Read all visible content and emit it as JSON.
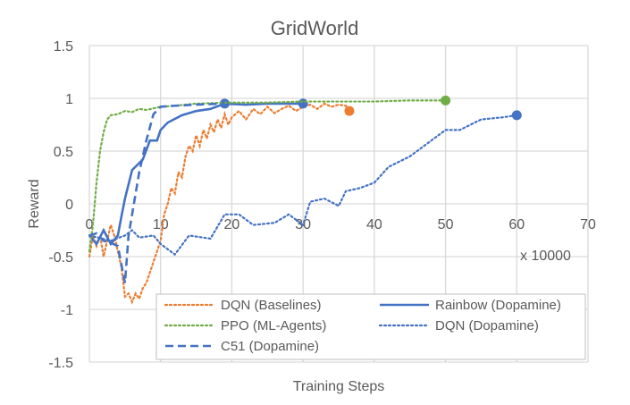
{
  "chart_data": {
    "type": "line",
    "title": "GridWorld",
    "xlabel": "Training Steps",
    "ylabel": "Reward",
    "x_unit_note": "x 10000",
    "xlim": [
      0,
      70
    ],
    "ylim": [
      -1.5,
      1.5
    ],
    "x_ticks": [
      0,
      10,
      20,
      30,
      40,
      50,
      60,
      70
    ],
    "y_ticks": [
      -1.5,
      -1,
      -0.5,
      0,
      0.5,
      1,
      1.5
    ],
    "y_tick_labels": [
      "-1.5",
      "-1",
      "-0.5",
      "0",
      "0.5",
      "1",
      "1.5"
    ],
    "grid": true,
    "legend_position": "bottom-right",
    "series": [
      {
        "name": "DQN (Baselines)",
        "color": "#ED7D31",
        "style": "dotted",
        "end_marker": true,
        "x": [
          0,
          0.5,
          1,
          1.5,
          2,
          2.5,
          3,
          3.5,
          4,
          4.5,
          5,
          5.5,
          6,
          6.5,
          7,
          7.5,
          8,
          8.5,
          9,
          9.5,
          10,
          10.5,
          11,
          11.5,
          12,
          12.5,
          13,
          13.5,
          14,
          14.5,
          15,
          15.5,
          16,
          16.5,
          17,
          17.5,
          18,
          18.5,
          19,
          19.5,
          20,
          21,
          22,
          23,
          24,
          25,
          26,
          27,
          28,
          29,
          30,
          31,
          32,
          33,
          34,
          35,
          36,
          36.5
        ],
        "y": [
          -0.5,
          -0.3,
          -0.4,
          -0.3,
          -0.5,
          -0.35,
          -0.2,
          -0.3,
          -0.45,
          -0.6,
          -0.88,
          -0.85,
          -0.93,
          -0.85,
          -0.9,
          -0.8,
          -0.75,
          -0.65,
          -0.55,
          -0.45,
          -0.35,
          -0.1,
          0.0,
          0.15,
          0.1,
          0.3,
          0.25,
          0.45,
          0.55,
          0.5,
          0.65,
          0.55,
          0.7,
          0.62,
          0.75,
          0.68,
          0.8,
          0.72,
          0.85,
          0.75,
          0.82,
          0.88,
          0.8,
          0.9,
          0.85,
          0.92,
          0.86,
          0.9,
          0.93,
          0.88,
          0.92,
          0.94,
          0.9,
          0.95,
          0.92,
          0.94,
          0.93,
          0.88
        ]
      },
      {
        "name": "Rainbow (Dopamine)",
        "color": "#4472C4",
        "style": "solid",
        "markers_at": [
          19,
          30
        ],
        "x": [
          0,
          1,
          2,
          3,
          4,
          4.5,
          5,
          6,
          7.5,
          8.5,
          9.5,
          10,
          11,
          13,
          15,
          17,
          19,
          22,
          25,
          30
        ],
        "y": [
          -0.3,
          -0.38,
          -0.25,
          -0.38,
          -0.3,
          -0.12,
          0.05,
          0.32,
          0.42,
          0.6,
          0.6,
          0.7,
          0.77,
          0.84,
          0.88,
          0.9,
          0.95,
          0.94,
          0.95,
          0.95
        ]
      },
      {
        "name": "PPO (ML-Agents)",
        "color": "#70AD47",
        "style": "dotted",
        "end_marker": true,
        "x": [
          0,
          0.5,
          1,
          1.5,
          2,
          2.5,
          3,
          4,
          5,
          6,
          7,
          8,
          10,
          12,
          15,
          20,
          25,
          30,
          35,
          40,
          45,
          50
        ],
        "y": [
          -0.45,
          -0.2,
          0.2,
          0.5,
          0.68,
          0.8,
          0.84,
          0.85,
          0.88,
          0.87,
          0.9,
          0.89,
          0.92,
          0.93,
          0.95,
          0.96,
          0.96,
          0.97,
          0.97,
          0.97,
          0.98,
          0.98
        ]
      },
      {
        "name": "DQN (Dopamine)",
        "color": "#4472C4",
        "style": "dotted",
        "end_marker": true,
        "x": [
          0,
          3,
          5,
          6,
          7,
          9,
          10,
          12,
          14,
          17,
          19,
          21,
          23,
          26,
          28,
          30,
          31,
          33,
          35,
          36,
          38,
          40,
          42,
          45,
          48,
          50,
          52,
          55,
          58,
          60
        ],
        "y": [
          -0.3,
          -0.35,
          -0.3,
          -0.25,
          -0.32,
          -0.3,
          -0.38,
          -0.48,
          -0.3,
          -0.33,
          -0.1,
          -0.1,
          -0.2,
          -0.18,
          -0.1,
          -0.2,
          0.02,
          0.05,
          -0.02,
          0.12,
          0.15,
          0.2,
          0.35,
          0.45,
          0.6,
          0.7,
          0.7,
          0.8,
          0.82,
          0.84
        ]
      },
      {
        "name": "C51 (Dopamine)",
        "color": "#4472C4",
        "style": "dashed",
        "x": [
          0,
          1,
          2,
          3,
          4,
          5,
          5.5,
          7,
          8,
          9,
          10,
          12,
          15,
          19
        ],
        "y": [
          -0.3,
          -0.28,
          -0.35,
          -0.37,
          -0.4,
          -0.75,
          -0.3,
          0.3,
          0.6,
          0.85,
          0.92,
          0.93,
          0.94,
          0.95
        ]
      }
    ],
    "legend_order": [
      0,
      1,
      2,
      3,
      4
    ]
  }
}
